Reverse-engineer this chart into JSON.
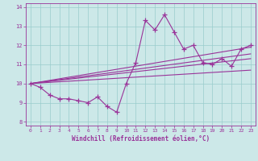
{
  "xlabel": "Windchill (Refroidissement éolien,°C)",
  "xlim": [
    -0.5,
    23.5
  ],
  "ylim": [
    7.8,
    14.2
  ],
  "yticks": [
    8,
    9,
    10,
    11,
    12,
    13,
    14
  ],
  "xticks": [
    0,
    1,
    2,
    3,
    4,
    5,
    6,
    7,
    8,
    9,
    10,
    11,
    12,
    13,
    14,
    15,
    16,
    17,
    18,
    19,
    20,
    21,
    22,
    23
  ],
  "bg_color": "#cce8e8",
  "line_color": "#993399",
  "grid_color": "#99cccc",
  "main_line_x": [
    0,
    1,
    2,
    3,
    4,
    5,
    6,
    7,
    8,
    9,
    10,
    11,
    12,
    13,
    14,
    15,
    16,
    17,
    18,
    19,
    20,
    21,
    22,
    23
  ],
  "main_line_y": [
    10.0,
    9.8,
    9.4,
    9.2,
    9.2,
    9.1,
    9.0,
    9.3,
    8.8,
    8.5,
    10.0,
    11.1,
    13.3,
    12.8,
    13.6,
    12.7,
    11.8,
    12.0,
    11.1,
    11.0,
    11.3,
    10.9,
    11.8,
    12.0
  ],
  "trend_lines": [
    [
      [
        0,
        23
      ],
      [
        10.0,
        11.9
      ]
    ],
    [
      [
        0,
        23
      ],
      [
        10.0,
        11.3
      ]
    ],
    [
      [
        0,
        23
      ],
      [
        10.0,
        10.7
      ]
    ],
    [
      [
        0,
        23
      ],
      [
        10.0,
        11.55
      ]
    ]
  ]
}
